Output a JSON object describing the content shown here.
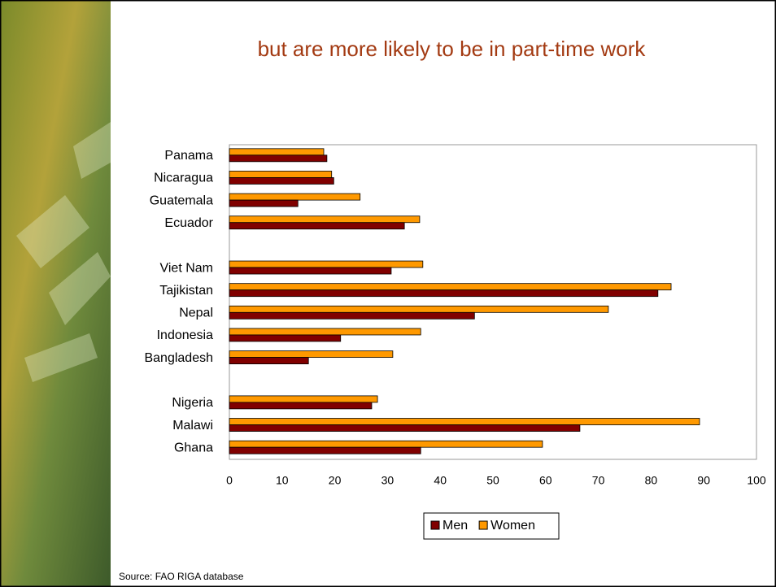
{
  "chart_data": {
    "type": "hbar",
    "title": "but are more likely to be in part-time work",
    "source": "Source: FAO RIGA database",
    "categories": [
      "Panama",
      "Nicaragua",
      "Guatemala",
      "Ecuador",
      null,
      "Viet Nam",
      "Tajikistan",
      "Nepal",
      "Indonesia",
      "Bangladesh",
      null,
      "Nigeria",
      "Malawi",
      "Ghana"
    ],
    "series": [
      {
        "name": "Women",
        "color": "#ff9900",
        "values": [
          17.9,
          19.4,
          24.8,
          36.1,
          null,
          36.7,
          83.8,
          71.9,
          36.3,
          31.0,
          null,
          28.1,
          89.2,
          59.4
        ]
      },
      {
        "name": "Men",
        "color": "#800000",
        "values": [
          18.5,
          19.8,
          13.0,
          33.2,
          null,
          30.7,
          81.3,
          46.5,
          21.1,
          15.0,
          null,
          27.0,
          66.5,
          36.3
        ]
      }
    ],
    "legend_order": [
      1,
      0
    ],
    "xlim": [
      0,
      100
    ],
    "xticks": [
      0,
      10,
      20,
      30,
      40,
      50,
      60,
      70,
      80,
      90,
      100
    ]
  }
}
